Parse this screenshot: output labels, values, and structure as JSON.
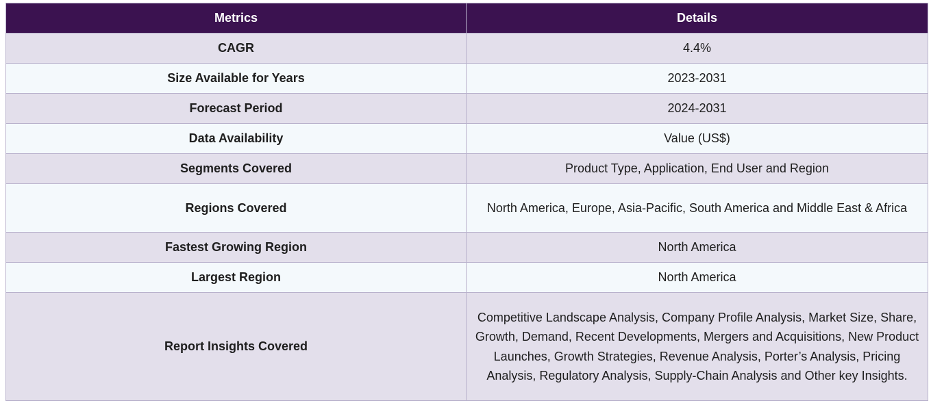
{
  "table": {
    "headers": [
      "Metrics",
      "Details"
    ],
    "rows": [
      {
        "metric": "CAGR",
        "details": "4.4%"
      },
      {
        "metric": "Size Available for Years",
        "details": "2023-2031"
      },
      {
        "metric": "Forecast Period",
        "details": "2024-2031"
      },
      {
        "metric": "Data Availability",
        "details": "Value (US$)"
      },
      {
        "metric": "Segments Covered",
        "details": "Product Type,  Application, End User and Region"
      },
      {
        "metric": "Regions Covered",
        "details": "North America, Europe, Asia-Pacific, South America and Middle East & Africa"
      },
      {
        "metric": "Fastest Growing Region",
        "details": "North America"
      },
      {
        "metric": "Largest Region",
        "details": "North America"
      },
      {
        "metric": "Report Insights Covered",
        "details": "Competitive Landscape Analysis, Company Profile Analysis, Market Size, Share, Growth, Demand, Recent Developments, Mergers and Acquisitions, New Product Launches, Growth Strategies, Revenue Analysis, Porter’s Analysis, Pricing Analysis, Regulatory Analysis, Supply-Chain Analysis and Other key Insights."
      }
    ]
  },
  "colors": {
    "header_bg": "#3b1250",
    "row_odd_bg": "#e3dfeb",
    "row_even_bg": "#f4f9fc",
    "border": "#b9b2cc"
  }
}
